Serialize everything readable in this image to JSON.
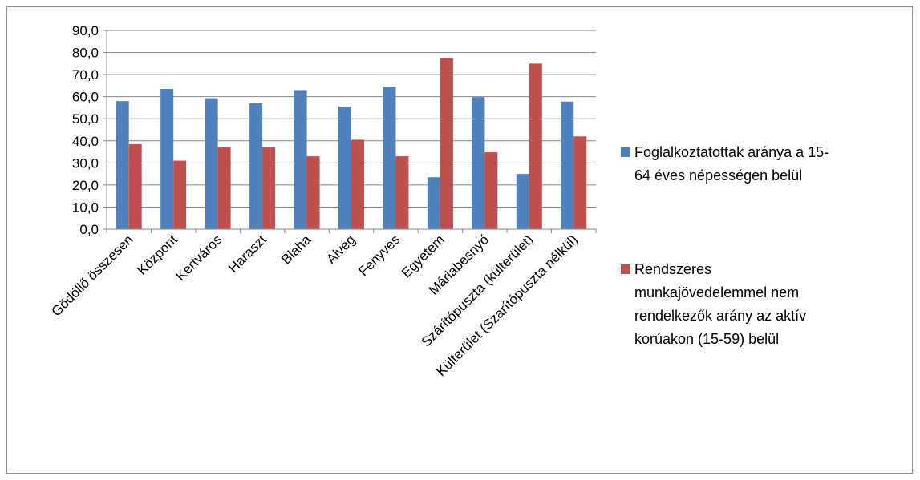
{
  "chart_data": {
    "type": "bar",
    "categories": [
      "Gödöllő összesen",
      "Központ",
      "Kertváros",
      "Haraszt",
      "Blaha",
      "Alvég",
      "Fenyves",
      "Egyetem",
      "Máriabesnyő",
      "Szárítópuszta (külterület)",
      "Külterület (Szárítópuszta nélkül)"
    ],
    "series": [
      {
        "name": "Foglalkoztatottak aránya a 15-64 éves népességen belül",
        "legend_lines": [
          "Foglalkoztatottak aránya a 15-",
          "64 éves népességen belül"
        ],
        "color": "#4f81bd",
        "values": [
          58.0,
          63.5,
          59.3,
          57.0,
          63.0,
          55.5,
          64.5,
          23.5,
          59.8,
          25.0,
          57.8
        ]
      },
      {
        "name": "Rendszeres munkajövedelemmel nem rendelkezők arány az aktív korúakon (15-59) belül",
        "legend_lines": [
          "Rendszeres",
          "munkajövedelemmel nem",
          "rendelkezők arány az aktív",
          "korúakon (15-59) belül"
        ],
        "color": "#c0504d",
        "values": [
          38.5,
          31.0,
          37.0,
          37.0,
          33.0,
          40.5,
          33.0,
          77.5,
          34.8,
          75.0,
          42.0
        ]
      }
    ],
    "y_ticks": [
      "0,0",
      "10,0",
      "20,0",
      "30,0",
      "40,0",
      "50,0",
      "60,0",
      "70,0",
      "80,0",
      "90,0"
    ],
    "ylim": [
      0,
      90
    ],
    "title": "",
    "xlabel": "",
    "ylabel": "",
    "grid": true,
    "legend_position": "right"
  }
}
